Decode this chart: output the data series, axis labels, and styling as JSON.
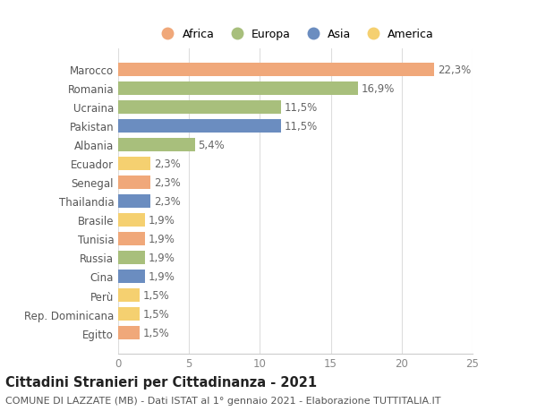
{
  "countries": [
    "Marocco",
    "Romania",
    "Ucraina",
    "Pakistan",
    "Albania",
    "Ecuador",
    "Senegal",
    "Thailandia",
    "Brasile",
    "Tunisia",
    "Russia",
    "Cina",
    "Perù",
    "Rep. Dominicana",
    "Egitto"
  ],
  "values": [
    22.3,
    16.9,
    11.5,
    11.5,
    5.4,
    2.3,
    2.3,
    2.3,
    1.9,
    1.9,
    1.9,
    1.9,
    1.5,
    1.5,
    1.5
  ],
  "labels": [
    "22,3%",
    "16,9%",
    "11,5%",
    "11,5%",
    "5,4%",
    "2,3%",
    "2,3%",
    "2,3%",
    "1,9%",
    "1,9%",
    "1,9%",
    "1,9%",
    "1,5%",
    "1,5%",
    "1,5%"
  ],
  "continents": [
    "Africa",
    "Europa",
    "Europa",
    "Asia",
    "Europa",
    "America",
    "Africa",
    "Asia",
    "America",
    "Africa",
    "Europa",
    "Asia",
    "America",
    "America",
    "Africa"
  ],
  "colors": {
    "Africa": "#F0A87A",
    "Europa": "#A8BF7C",
    "Asia": "#6B8DC0",
    "America": "#F5D070"
  },
  "legend_order": [
    "Africa",
    "Europa",
    "Asia",
    "America"
  ],
  "xlim": [
    0,
    25
  ],
  "xticks": [
    0,
    5,
    10,
    15,
    20,
    25
  ],
  "title": "Cittadini Stranieri per Cittadinanza - 2021",
  "subtitle": "COMUNE DI LAZZATE (MB) - Dati ISTAT al 1° gennaio 2021 - Elaborazione TUTTITALIA.IT",
  "background_color": "#ffffff",
  "bar_height": 0.72,
  "label_fontsize": 8.5,
  "tick_fontsize": 8.5,
  "title_fontsize": 10.5,
  "subtitle_fontsize": 8.0
}
